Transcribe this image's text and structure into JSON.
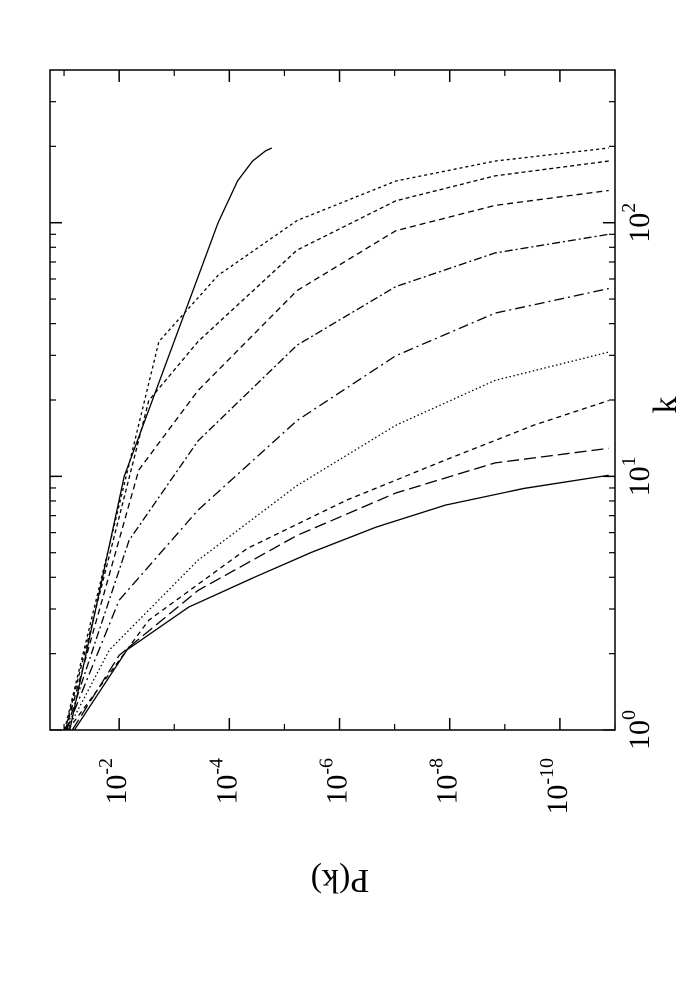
{
  "chart_data": {
    "type": "line",
    "x_label": "k",
    "y_label": "P(k)",
    "xscale": "log",
    "yscale": "log",
    "xlim": [
      1,
      400
    ],
    "ylim": [
      1e-11,
      0.18
    ],
    "xticks": [
      {
        "value": 1,
        "label": "10",
        "exponent": "0"
      },
      {
        "value": 10,
        "label": "10",
        "exponent": "1"
      },
      {
        "value": 100,
        "label": "10",
        "exponent": "2"
      }
    ],
    "xminorticks": [
      2,
      3,
      4,
      5,
      6,
      7,
      8,
      9,
      20,
      30,
      40,
      50,
      60,
      70,
      80,
      90,
      200,
      300
    ],
    "yticks": [
      {
        "value": 0.01,
        "label": "10",
        "exponent": "-2"
      },
      {
        "value": 0.0001,
        "label": "10",
        "exponent": "-4"
      },
      {
        "value": 1e-06,
        "label": "10",
        "exponent": "-6"
      },
      {
        "value": 1e-08,
        "label": "10",
        "exponent": "-8"
      },
      {
        "value": 1e-10,
        "label": "10",
        "exponent": "-10"
      }
    ],
    "yminorticks": [
      0.1,
      0.001,
      1e-05,
      1e-07,
      1e-09,
      1e-11
    ],
    "series": [
      {
        "color": "#000000",
        "dash": "none",
        "x": [
          1,
          10,
          100,
          146,
          175,
          192,
          197
        ],
        "values": [
          0.079,
          0.0081,
          0.00016,
          7.1e-05,
          3.8e-05,
          2.2e-05,
          1.7e-05
        ]
      },
      {
        "color": "#000000",
        "dash": "none",
        "x": [
          1,
          2.07,
          3.05,
          3.97,
          5.02,
          6.3,
          7.7,
          8.96,
          10.1
        ],
        "values": [
          0.065,
          0.0072,
          0.00055,
          3.8e-05,
          3.2e-06,
          2.2e-07,
          1.2e-08,
          4.5e-10,
          1.3e-11
        ]
      },
      {
        "color": "#000000",
        "dash": "12,5",
        "x": [
          1,
          1.97,
          3.55,
          5.85,
          8.6,
          11.3,
          12.9
        ],
        "values": [
          0.071,
          0.01,
          0.00037,
          5.9e-06,
          9.5e-08,
          1.5e-09,
          1.3e-11
        ]
      },
      {
        "color": "#000000",
        "dash": "5,4",
        "x": [
          1,
          2.71,
          5.2,
          8.06,
          11.6,
          15.9,
          19.9
        ],
        "values": [
          0.085,
          0.0029,
          4.7e-05,
          7.4e-07,
          1.2e-08,
          3e-10,
          1.3e-11
        ]
      },
      {
        "color": "#000000",
        "dash": "1.5,2.5",
        "x": [
          1,
          2.07,
          4.67,
          9.2,
          15.9,
          23.9,
          30.9
        ],
        "values": [
          0.087,
          0.015,
          0.00037,
          5.9e-06,
          9.5e-08,
          1.5e-09,
          1.3e-11
        ]
      },
      {
        "color": "#000000",
        "dash": "10,4,2,4",
        "x": [
          1,
          3.25,
          7.36,
          16.6,
          29.9,
          44,
          55
        ],
        "values": [
          0.09,
          0.01,
          0.00037,
          5.9e-06,
          9.5e-08,
          1.5e-09,
          1.3e-11
        ]
      },
      {
        "color": "#000000",
        "dash": "8,3,2,3",
        "x": [
          1,
          5.6,
          13.8,
          32.9,
          56,
          76,
          90
        ],
        "values": [
          0.092,
          0.0066,
          0.00037,
          5.9e-06,
          9.5e-08,
          1.5e-09,
          1.3e-11
        ]
      },
      {
        "color": "#000000",
        "dash": "6,4",
        "x": [
          1,
          10.6,
          21.8,
          54,
          93,
          117,
          134
        ],
        "values": [
          0.094,
          0.0044,
          0.00037,
          5.9e-06,
          9.5e-08,
          1.5e-09,
          1.3e-11
        ]
      },
      {
        "color": "#000000",
        "dash": "4,3",
        "x": [
          1,
          19.9,
          34,
          78,
          122,
          153,
          175
        ],
        "values": [
          0.096,
          0.0029,
          0.00037,
          5.9e-06,
          9.5e-08,
          1.5e-09,
          1.3e-11
        ]
      },
      {
        "color": "#000000",
        "dash": "3,3",
        "x": [
          1,
          34,
          62,
          102,
          146,
          175,
          197
        ],
        "values": [
          0.098,
          0.0019,
          0.00016,
          5.9e-06,
          9.5e-08,
          1.5e-09,
          1.3e-11
        ]
      }
    ]
  }
}
